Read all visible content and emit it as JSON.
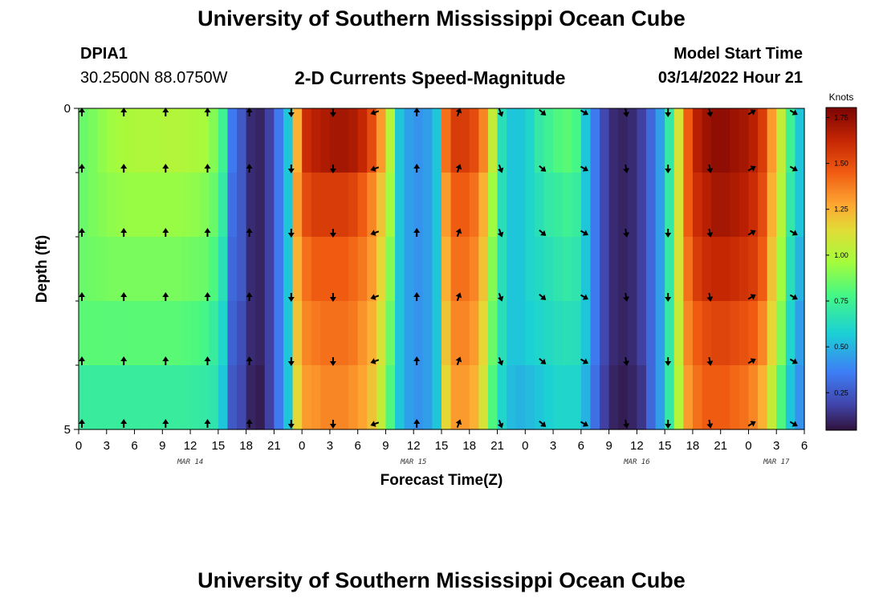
{
  "header": {
    "title": "University of Southern Mississippi Ocean Cube",
    "station_id": "DPIA1",
    "station_coords": "30.2500N  88.0750W",
    "plot_title": "2-D Currents Speed-Magnitude",
    "model_start_label": "Model Start Time",
    "model_start_value": "03/14/2022 Hour 21"
  },
  "footer": {
    "title": "University of Southern Mississippi Ocean Cube"
  },
  "chart_data": {
    "type": "heatmap",
    "title": "2-D Currents Speed-Magnitude",
    "xlabel": "Forecast Time(Z)",
    "ylabel": "Depth (ft)",
    "colorbar_label": "Knots",
    "colorbar_range": [
      0.05,
      1.8
    ],
    "colorbar_ticks": [
      "0.25",
      "0.50",
      "0.75",
      "1.00",
      "1.25",
      "1.50",
      "1.75"
    ],
    "colorbar_tick_values": [
      0.25,
      0.5,
      0.75,
      1.0,
      1.25,
      1.5,
      1.75
    ],
    "y_range": [
      0,
      5
    ],
    "y_ticks": [
      "0",
      "5"
    ],
    "x_range_hours": [
      0,
      78
    ],
    "x_tick_labels": [
      "0",
      "3",
      "6",
      "9",
      "12",
      "15",
      "18",
      "21",
      "0",
      "3",
      "6",
      "9",
      "12",
      "15",
      "18",
      "21",
      "0",
      "3",
      "6",
      "9",
      "12",
      "15",
      "18",
      "21",
      "0",
      "3",
      "6"
    ],
    "date_labels": [
      {
        "label": "MAR 14",
        "hour": 12
      },
      {
        "label": "MAR 15",
        "hour": 36
      },
      {
        "label": "MAR 16",
        "hour": 60
      },
      {
        "label": "MAR 17",
        "hour": 75
      }
    ],
    "time_hours": [
      0,
      1,
      2,
      3,
      4,
      5,
      6,
      7,
      8,
      9,
      10,
      11,
      12,
      13,
      14,
      15,
      16,
      17,
      18,
      19,
      20,
      21,
      22,
      23,
      24,
      25,
      26,
      27,
      28,
      29,
      30,
      31,
      32,
      33,
      34,
      35,
      36,
      37,
      38,
      39,
      40,
      41,
      42,
      43,
      44,
      45,
      46,
      47,
      48,
      49,
      50,
      51,
      52,
      53,
      54,
      55,
      56,
      57,
      58,
      59,
      60,
      61,
      62,
      63,
      64,
      65,
      66,
      67,
      68,
      69,
      70,
      71,
      72,
      73,
      74,
      75,
      76,
      77
    ],
    "depth_layers": [
      0.5,
      1.5,
      2.5,
      3.5,
      4.5
    ],
    "speed_knots": [
      [
        0.85,
        0.88,
        0.92,
        0.95,
        0.97,
        0.98,
        0.99,
        0.99,
        0.99,
        1.0,
        1.0,
        0.99,
        0.98,
        0.97,
        0.9,
        0.75,
        0.35,
        0.25,
        0.12,
        0.1,
        0.18,
        0.35,
        0.55,
        1.25,
        1.6,
        1.65,
        1.68,
        1.7,
        1.7,
        1.68,
        1.62,
        1.5,
        1.3,
        1.0,
        0.55,
        0.45,
        0.42,
        0.45,
        0.55,
        1.4,
        1.55,
        1.55,
        1.5,
        1.35,
        1.05,
        0.65,
        0.55,
        0.55,
        0.6,
        0.7,
        0.75,
        0.8,
        0.82,
        0.78,
        0.55,
        0.35,
        0.2,
        0.12,
        0.1,
        0.12,
        0.18,
        0.3,
        0.45,
        0.7,
        1.1,
        1.45,
        1.65,
        1.72,
        1.75,
        1.75,
        1.72,
        1.7,
        1.65,
        1.55,
        1.3,
        1.05,
        0.75,
        0.55
      ],
      [
        0.85,
        0.88,
        0.9,
        0.92,
        0.93,
        0.94,
        0.94,
        0.94,
        0.94,
        0.94,
        0.94,
        0.93,
        0.92,
        0.9,
        0.85,
        0.7,
        0.32,
        0.25,
        0.12,
        0.1,
        0.18,
        0.35,
        0.55,
        1.3,
        1.5,
        1.55,
        1.55,
        1.55,
        1.55,
        1.52,
        1.45,
        1.35,
        1.2,
        0.95,
        0.55,
        0.45,
        0.42,
        0.45,
        0.55,
        1.3,
        1.45,
        1.45,
        1.4,
        1.25,
        0.95,
        0.65,
        0.55,
        0.55,
        0.6,
        0.65,
        0.7,
        0.72,
        0.75,
        0.72,
        0.55,
        0.35,
        0.2,
        0.12,
        0.1,
        0.12,
        0.18,
        0.3,
        0.45,
        0.7,
        1.1,
        1.45,
        1.6,
        1.65,
        1.7,
        1.7,
        1.68,
        1.65,
        1.6,
        1.5,
        1.25,
        1.0,
        0.7,
        0.55
      ],
      [
        0.85,
        0.86,
        0.87,
        0.88,
        0.88,
        0.88,
        0.88,
        0.88,
        0.88,
        0.88,
        0.88,
        0.87,
        0.86,
        0.85,
        0.8,
        0.65,
        0.3,
        0.25,
        0.12,
        0.1,
        0.18,
        0.35,
        0.55,
        1.25,
        1.4,
        1.45,
        1.45,
        1.45,
        1.45,
        1.42,
        1.38,
        1.3,
        1.15,
        0.9,
        0.55,
        0.45,
        0.42,
        0.45,
        0.55,
        1.25,
        1.4,
        1.4,
        1.35,
        1.2,
        0.9,
        0.65,
        0.55,
        0.55,
        0.6,
        0.62,
        0.65,
        0.68,
        0.7,
        0.68,
        0.55,
        0.35,
        0.2,
        0.12,
        0.1,
        0.12,
        0.18,
        0.3,
        0.45,
        0.7,
        1.1,
        1.4,
        1.55,
        1.6,
        1.62,
        1.62,
        1.6,
        1.58,
        1.55,
        1.45,
        1.2,
        0.95,
        0.65,
        0.5
      ],
      [
        0.82,
        0.82,
        0.82,
        0.82,
        0.82,
        0.82,
        0.82,
        0.82,
        0.82,
        0.82,
        0.82,
        0.81,
        0.8,
        0.78,
        0.72,
        0.6,
        0.28,
        0.22,
        0.12,
        0.1,
        0.18,
        0.35,
        0.55,
        1.2,
        1.35,
        1.38,
        1.4,
        1.4,
        1.4,
        1.38,
        1.32,
        1.25,
        1.1,
        0.85,
        0.55,
        0.45,
        0.42,
        0.45,
        0.55,
        1.2,
        1.35,
        1.35,
        1.3,
        1.15,
        0.85,
        0.65,
        0.55,
        0.55,
        0.58,
        0.6,
        0.62,
        0.64,
        0.65,
        0.64,
        0.55,
        0.35,
        0.2,
        0.12,
        0.1,
        0.12,
        0.18,
        0.3,
        0.45,
        0.7,
        1.05,
        1.35,
        1.45,
        1.5,
        1.52,
        1.52,
        1.5,
        1.48,
        1.45,
        1.35,
        1.15,
        0.9,
        0.6,
        0.45
      ],
      [
        0.72,
        0.72,
        0.72,
        0.72,
        0.72,
        0.72,
        0.72,
        0.72,
        0.72,
        0.72,
        0.72,
        0.72,
        0.71,
        0.7,
        0.68,
        0.55,
        0.25,
        0.2,
        0.1,
        0.08,
        0.18,
        0.35,
        0.55,
        1.15,
        1.3,
        1.32,
        1.35,
        1.35,
        1.35,
        1.32,
        1.28,
        1.2,
        1.05,
        0.8,
        0.55,
        0.45,
        0.42,
        0.45,
        0.55,
        1.15,
        1.3,
        1.3,
        1.25,
        1.1,
        0.8,
        0.6,
        0.52,
        0.5,
        0.52,
        0.55,
        0.58,
        0.6,
        0.6,
        0.6,
        0.5,
        0.32,
        0.18,
        0.1,
        0.08,
        0.1,
        0.15,
        0.3,
        0.45,
        0.7,
        1.0,
        1.3,
        1.4,
        1.45,
        1.45,
        1.45,
        1.42,
        1.4,
        1.35,
        1.25,
        1.05,
        0.8,
        0.55,
        0.42
      ]
    ],
    "vector_times_hours": [
      0,
      4.5,
      9,
      13.5,
      18,
      22.5,
      27,
      31.5,
      36,
      40.5,
      45,
      49.5,
      54,
      58.5,
      63,
      67.5,
      72,
      76.5
    ],
    "vector_directions_deg": [
      0,
      0,
      0,
      0,
      0,
      180,
      180,
      250,
      0,
      20,
      160,
      130,
      120,
      170,
      180,
      170,
      60,
      120
    ]
  }
}
